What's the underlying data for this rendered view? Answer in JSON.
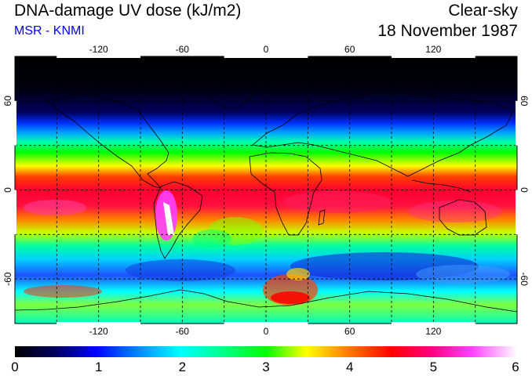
{
  "header": {
    "title": "DNA-damage UV dose (kJ/m2)",
    "source": "MSR - KNMI",
    "sky_condition": "Clear-sky",
    "date": "18 November 1987"
  },
  "colors": {
    "source_text": "#0000ff",
    "colorbar": [
      "#000000",
      "#000060",
      "#0000ff",
      "#0090ff",
      "#00ffff",
      "#00ff80",
      "#00ff00",
      "#ffff00",
      "#ff8000",
      "#ff0000",
      "#ff0080",
      "#ff40ff",
      "#ffffff"
    ]
  },
  "map": {
    "projection": "equirectangular",
    "longitude_ticks": [
      "-120",
      "-60",
      "0",
      "60",
      "120"
    ],
    "latitude_ticks": [
      "60",
      "0",
      "-60"
    ],
    "gridlines": "dashed, 30 degree spacing"
  },
  "colorbar": {
    "ticks": [
      "0",
      "1",
      "2",
      "3",
      "4",
      "5",
      "6"
    ],
    "min": 0,
    "max": 6
  }
}
